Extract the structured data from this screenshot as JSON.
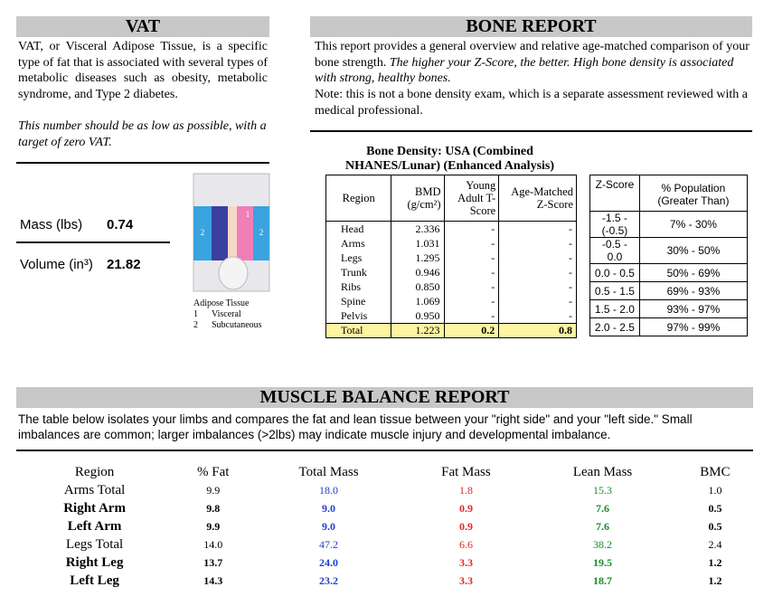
{
  "vat": {
    "title": "VAT",
    "paragraph": "VAT, or Visceral Adipose Tissue, is a specific type of fat that is associated with several types of metabolic diseases such as obesity, metabolic syndrome, and Type 2 diabetes.",
    "note": "This number should be as low as possible, with a target of zero VAT.",
    "mass_label": "Mass (lbs)",
    "mass_value": "0.74",
    "volume_label": "Volume (in³)",
    "volume_value": "21.82",
    "figure_labels": [
      "2",
      "1",
      "2"
    ],
    "legend_title": "Adipose Tissue",
    "legend": [
      {
        "num": "1",
        "label": "Visceral"
      },
      {
        "num": "2",
        "label": "Subcutaneous"
      }
    ]
  },
  "bone": {
    "title": "BONE REPORT",
    "intro": "This report provides a general overview and relative age-matched comparison of your bone strength.",
    "intro_italic": "The higher your Z-Score, the better.  High bone density is associated with strong, healthy bones.",
    "note": "Note: this is not a bone density exam, which is a separate assessment reviewed with a medical professional.",
    "table_title": "Bone Density: USA (Combined NHANES/Lunar) (Enhanced Analysis)",
    "headers": [
      "Region",
      "BMD (g/cm²)",
      "Young Adult T-Score",
      "Age-Matched Z-Score"
    ],
    "rows": [
      [
        "Head",
        "2.336",
        "-",
        "-"
      ],
      [
        "Arms",
        "1.031",
        "-",
        "-"
      ],
      [
        "Legs",
        "1.295",
        "-",
        "-"
      ],
      [
        "Trunk",
        "0.946",
        "-",
        "-"
      ],
      [
        "Ribs",
        "0.850",
        "-",
        "-"
      ],
      [
        "Spine",
        "1.069",
        "-",
        "-"
      ],
      [
        "Pelvis",
        "0.950",
        "-",
        "-"
      ]
    ],
    "total": [
      "Total",
      "1.223",
      "0.2",
      "0.8"
    ],
    "z_headers": [
      "Z-Score",
      "% Population (Greater Than)"
    ],
    "z_rows": [
      [
        "-1.5 - (-0.5)",
        "7% - 30%"
      ],
      [
        "-0.5 - 0.0",
        "30% - 50%"
      ],
      [
        "0.0 - 0.5",
        "50% - 69%"
      ],
      [
        "0.5 - 1.5",
        "69% - 93%"
      ],
      [
        "1.5 - 2.0",
        "93% - 97%"
      ],
      [
        "2.0 - 2.5",
        "97% - 99%"
      ]
    ]
  },
  "muscle": {
    "title": "MUSCLE BALANCE REPORT",
    "text": "The table below isolates your limbs and compares the fat and lean tissue between your \"right side\" and your \"left side.\"  Small imbalances are common; larger imbalances (>2lbs)  may indicate muscle injury and developmental imbalance.",
    "headers": [
      "Region",
      "% Fat",
      "Total Mass",
      "Fat Mass",
      "Lean Mass",
      "BMC"
    ],
    "column_colors": [
      "#000000",
      "#000000",
      "#1f3fd0",
      "#e0262a",
      "#1c8a2a",
      "#000000"
    ],
    "rows": [
      {
        "bold": false,
        "cells": [
          "Arms Total",
          "9.9",
          "18.0",
          "1.8",
          "15.3",
          "1.0"
        ]
      },
      {
        "bold": true,
        "cells": [
          "Right Arm",
          "9.8",
          "9.0",
          "0.9",
          "7.6",
          "0.5"
        ]
      },
      {
        "bold": true,
        "cells": [
          "Left Arm",
          "9.9",
          "9.0",
          "0.9",
          "7.6",
          "0.5"
        ]
      },
      {
        "bold": false,
        "cells": [
          "Legs Total",
          "14.0",
          "47.2",
          "6.6",
          "38.2",
          "2.4"
        ]
      },
      {
        "bold": true,
        "cells": [
          "Right Leg",
          "13.7",
          "24.0",
          "3.3",
          "19.5",
          "1.2"
        ]
      },
      {
        "bold": true,
        "cells": [
          "Left Leg",
          "14.3",
          "23.2",
          "3.3",
          "18.7",
          "1.2"
        ]
      }
    ]
  }
}
